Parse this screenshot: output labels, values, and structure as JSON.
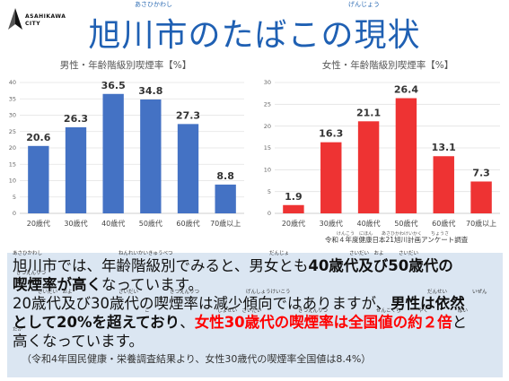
{
  "logo": {
    "line1": "ASAHIKAWA",
    "line2": "CITY"
  },
  "title": "旭川市のたばこの現状",
  "title_ruby": {
    "asahikawashi": "あさひかわし",
    "genjou": "げんじょう"
  },
  "survey_note": "令和４年度健康日本21旭川計画アンケート調査",
  "survey_ruby": "けんこう　にほん　　あさひかわけいかく　　ちょうさ",
  "chart_data": [
    {
      "type": "bar",
      "title": "男性・年齢階級別喫煙率【%】",
      "categories": [
        "20歳代",
        "30歳代",
        "40歳代",
        "50歳代",
        "60歳代",
        "70歳以上"
      ],
      "values": [
        20.6,
        26.3,
        36.5,
        34.8,
        27.3,
        8.8
      ],
      "ylim": [
        0,
        40
      ],
      "yticks": [
        0,
        5,
        10,
        15,
        20,
        25,
        30,
        35,
        40
      ],
      "color": "#4472c4",
      "grid": true
    },
    {
      "type": "bar",
      "title": "女性・年齢階級別喫煙率【%】",
      "categories": [
        "20歳代",
        "30歳代",
        "40歳代",
        "50歳代",
        "60歳代",
        "70歳以上"
      ],
      "values": [
        1.9,
        16.3,
        21.1,
        26.4,
        13.1,
        7.3
      ],
      "ylim": [
        0,
        30
      ],
      "yticks": [
        0,
        5,
        10,
        15,
        20,
        25,
        30
      ],
      "color": "#ee3333",
      "grid": true
    }
  ],
  "text": {
    "l1_a": "旭川市では、年齢階級別でみると、男女とも",
    "l1_b": "40歳代及び50歳代の",
    "l2_a": "喫煙率が高く",
    "l2_b": "なっています。",
    "l3_a": "20歳代及び30歳代の喫煙率は減少傾向ではありますが、",
    "l3_b": "男性は依然",
    "l4_a": "として20%を超えており",
    "l4_b": "、",
    "l4_c": "女性30歳代の喫煙率は全国値の約２倍",
    "l4_d": "と",
    "l5": "高くなっています。",
    "source": "（令和4年国民健康・栄養調査結果より、女性30歳代の喫煙率全国値は8.4%）"
  },
  "ruby": {
    "r1": "あさひかわし",
    "r2": "ねんれいかいきゅうべつ",
    "r3": "だんじょ",
    "r4": "さいだい　およ　　　さいだい",
    "r5": "きつえんりつ",
    "r6": "さいだい　およ",
    "r7": "さいだい",
    "r8": "きつえんりつ",
    "r9": "げんしょうけいこう",
    "r10": "だんせい",
    "r11": "いぜん",
    "r12": "こ",
    "r13": "じょせい　さいだい",
    "r14": "きつえんりつ",
    "r15": "ぜんこくち",
    "r16": "やく",
    "r17": "ばい",
    "r18": "たか"
  }
}
